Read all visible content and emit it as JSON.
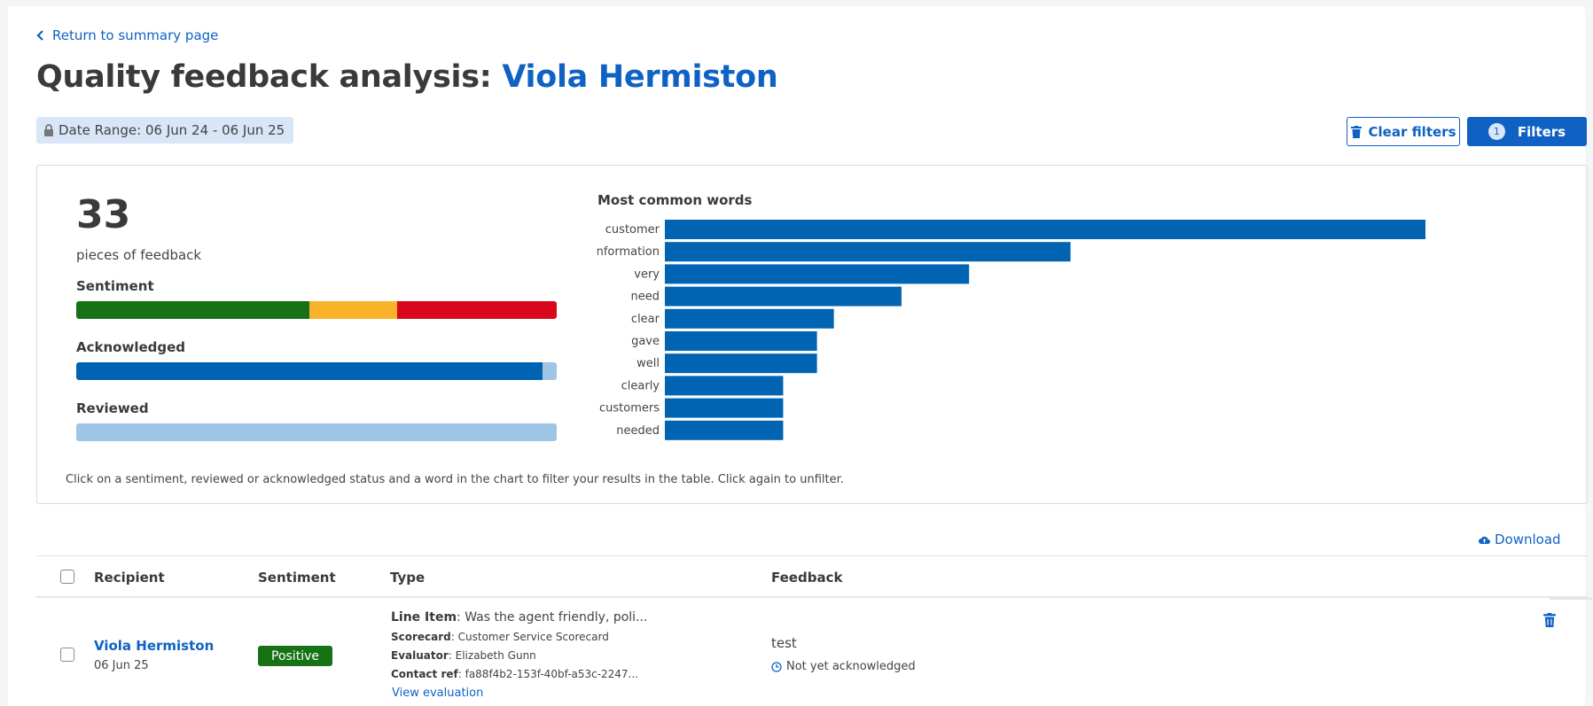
{
  "nav": {
    "back_label": "Return to summary page"
  },
  "header": {
    "title_prefix": "Quality feedback analysis: ",
    "title_name": "Viola Hermiston",
    "date_range": "Date Range: 06 Jun 24 - 06 Jun 25"
  },
  "toolbar": {
    "clear_filters_label": "Clear filters",
    "filters_label": "Filters",
    "filters_count": "1"
  },
  "summary": {
    "count": "33",
    "count_label": "pieces of feedback",
    "sentiment_label": "Sentiment",
    "sentiment_split": {
      "positive": 0.485,
      "neutral": 0.182,
      "negative": 0.333
    },
    "acknowledged_label": "Acknowledged",
    "acknowledged_fraction": 0.97,
    "reviewed_label": "Reviewed",
    "reviewed_fraction": 0.0,
    "colors": {
      "positive": "#177215",
      "neutral": "#f8b32b",
      "negative": "#d8071b",
      "filled": "#0064b3",
      "empty": "#9ec5e5"
    },
    "hint": "Click on a sentiment, reviewed or acknowledged status and a word in the chart to filter your results in the table. Click again to unfilter."
  },
  "chart_data": {
    "type": "bar",
    "orientation": "horizontal",
    "title": "Most common words",
    "categories": [
      "customer",
      "information",
      "very",
      "need",
      "clear",
      "gave",
      "well",
      "clearly",
      "customers",
      "needed"
    ],
    "values": [
      45,
      24,
      18,
      14,
      10,
      9,
      9,
      7,
      7,
      7
    ],
    "color": "#0064b3",
    "grid": false
  },
  "table": {
    "download_label": "Download",
    "headers": {
      "recipient": "Recipient",
      "sentiment": "Sentiment",
      "type": "Type",
      "feedback": "Feedback"
    },
    "rows": [
      {
        "recipient": "Viola Hermiston",
        "date": "06 Jun 25",
        "sentiment": "Positive",
        "line_item_key": "Line Item",
        "line_item_value": ": Was the agent friendly, poli...",
        "scorecard_key": "Scorecard",
        "scorecard_value": ": Customer Service Scorecard",
        "evaluator_key": "Evaluator",
        "evaluator_value": ": Elizabeth Gunn",
        "contact_key": "Contact ref",
        "contact_value": ": fa88f4b2-153f-40bf-a53c-2247...",
        "view_label": "View evaluation",
        "feedback": "test",
        "ack_status": "Not yet acknowledged"
      }
    ]
  }
}
